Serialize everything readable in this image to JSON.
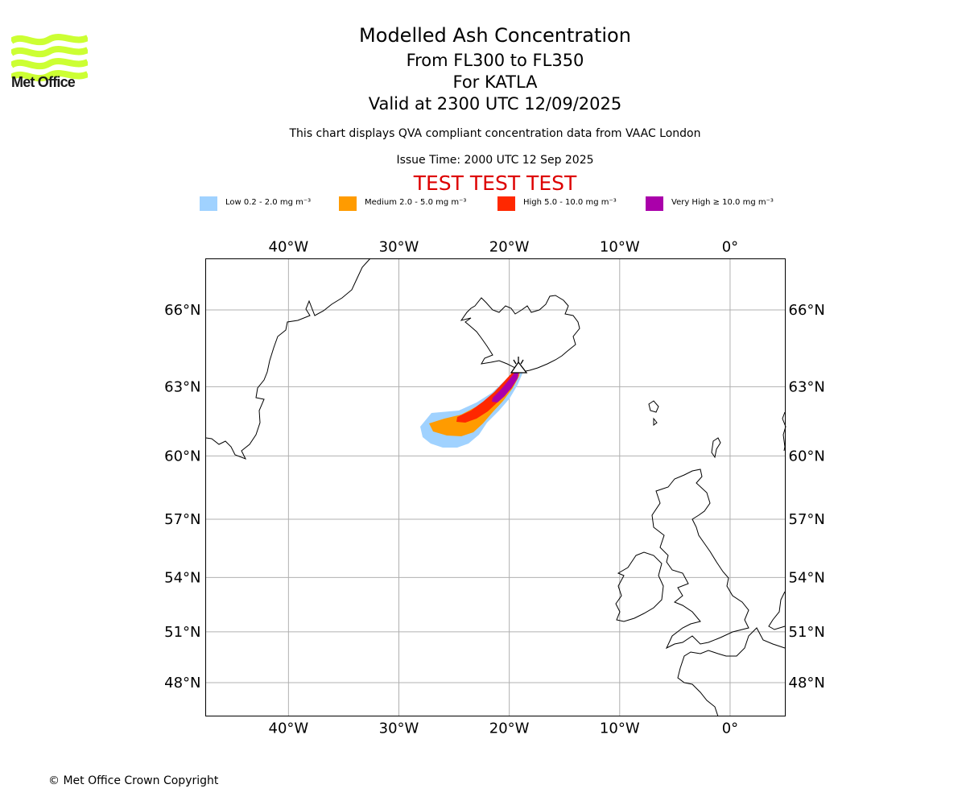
{
  "brand": {
    "name": "Met Office",
    "color": "#ccff33"
  },
  "header": {
    "title": "Modelled Ash Concentration",
    "level_range": "From FL300 to FL350",
    "volcano_line": "For KATLA",
    "valid_time": "Valid at 2300 UTC 12/09/2025",
    "note": "This chart displays QVA compliant concentration data from VAAC London",
    "issue_time": "Issue Time: 2000 UTC 12 Sep 2025",
    "test_banner": "TEST TEST TEST",
    "test_color": "#dd0000"
  },
  "legend": [
    {
      "label": "Low 0.2 - 2.0 mg m⁻³",
      "color": "#a0d2ff"
    },
    {
      "label": "Medium 2.0 - 5.0 mg m⁻³",
      "color": "#ff9b00"
    },
    {
      "label": "High 5.0 - 10.0 mg m⁻³",
      "color": "#ff2800"
    },
    {
      "label": "Very High ≥ 10.0 mg m⁻³",
      "color": "#aa00aa"
    }
  ],
  "map": {
    "lon_range": [
      -47.5,
      5
    ],
    "lat_range": [
      46.5,
      68.5
    ],
    "lon_ticks": [
      {
        "value": -40,
        "label": "40°W"
      },
      {
        "value": -30,
        "label": "30°W"
      },
      {
        "value": -20,
        "label": "20°W"
      },
      {
        "value": -10,
        "label": "10°W"
      },
      {
        "value": 0,
        "label": "0°"
      }
    ],
    "lat_ticks": [
      {
        "value": 66,
        "label": "66°N"
      },
      {
        "value": 63,
        "label": "63°N"
      },
      {
        "value": 60,
        "label": "60°N"
      },
      {
        "value": 57,
        "label": "57°N"
      },
      {
        "value": 54,
        "label": "54°N"
      },
      {
        "value": 51,
        "label": "51°N"
      },
      {
        "value": 48,
        "label": "48°N"
      }
    ],
    "grid": true,
    "volcano": {
      "name": "KATLA",
      "lon": -19.05,
      "lat": 63.63,
      "icon": "volcano-icon"
    }
  },
  "footer": {
    "copyright": "© Met Office Crown Copyright"
  }
}
